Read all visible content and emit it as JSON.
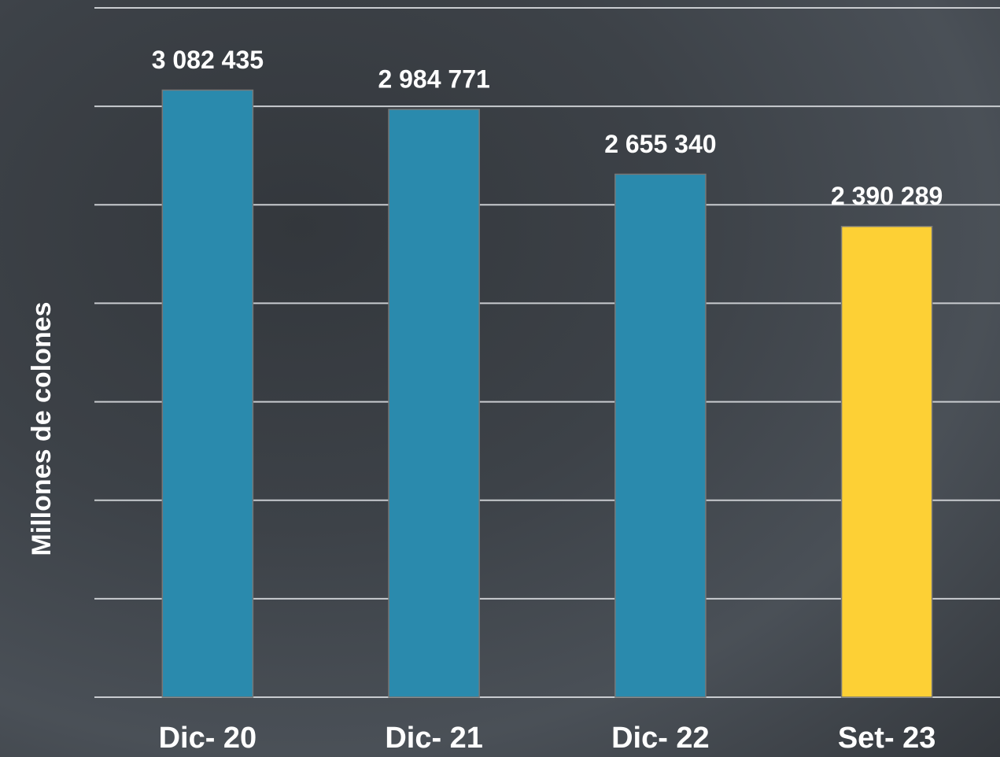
{
  "chart_data": {
    "type": "bar",
    "y_label": "Millones de colones",
    "categories": [
      "Dic- 20",
      "Dic- 21",
      "Dic- 22",
      "Set- 23"
    ],
    "values": [
      3082435,
      2984771,
      2655340,
      2390289
    ],
    "value_labels": [
      "3 082 435",
      "2 984 771",
      "2 655 340",
      "2 390 289"
    ],
    "colors": [
      "#2a8aad",
      "#2a8aad",
      "#2a8aad",
      "#fdd035"
    ],
    "ylim": [
      0,
      3500000
    ],
    "yticks": [
      0,
      500000,
      1000000,
      1500000,
      2000000,
      2500000,
      3000000,
      3500000
    ],
    "grid": true
  }
}
